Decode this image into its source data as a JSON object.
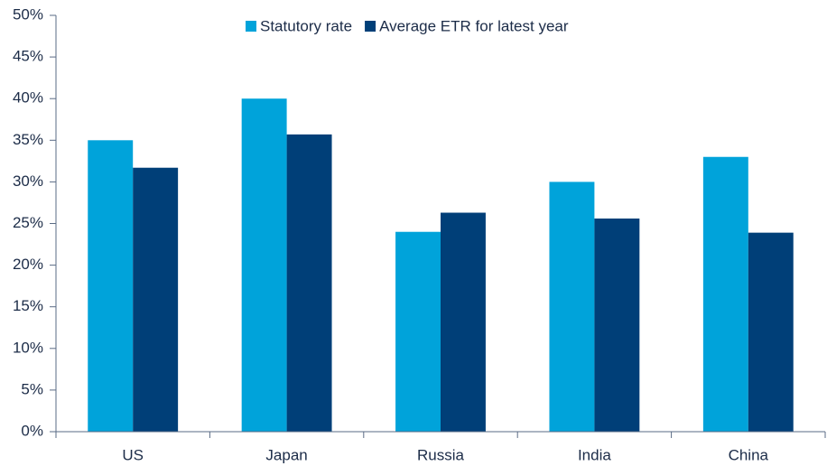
{
  "chart_data": {
    "type": "bar",
    "categories": [
      "US",
      "Japan",
      "Russia",
      "India",
      "China"
    ],
    "series": [
      {
        "name": "Statutory rate",
        "color": "#00a3da",
        "values": [
          35,
          40,
          24,
          30,
          33
        ]
      },
      {
        "name": "Average ETR for latest year",
        "color": "#003f78",
        "values": [
          31.7,
          35.7,
          26.3,
          25.6,
          23.9
        ]
      }
    ],
    "ylim": [
      0,
      50
    ],
    "yticks": [
      {
        "value": 0,
        "label": "0%"
      },
      {
        "value": 5,
        "label": "5%"
      },
      {
        "value": 10,
        "label": "10%"
      },
      {
        "value": 15,
        "label": "15%"
      },
      {
        "value": 20,
        "label": "20%"
      },
      {
        "value": 25,
        "label": "25%"
      },
      {
        "value": 30,
        "label": "30%"
      },
      {
        "value": 35,
        "label": "35%"
      },
      {
        "value": 40,
        "label": "40%"
      },
      {
        "value": 45,
        "label": "45%"
      },
      {
        "value": 50,
        "label": "50%"
      }
    ],
    "grid": false,
    "legend": "top"
  }
}
